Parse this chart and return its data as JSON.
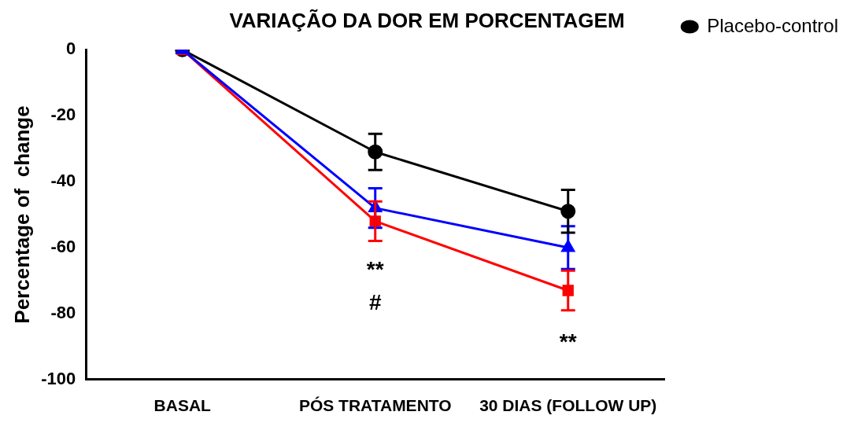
{
  "chart_data": {
    "type": "line",
    "title": "VARIAÇÃO DA DOR EM PORCENTAGEM",
    "ylabel": "Percentage of  change",
    "categories": [
      "BASAL",
      "PÓS TRATAMENTO",
      "30 DIAS (FOLLOW UP)"
    ],
    "series": [
      {
        "color": "#0000ff",
        "marker": "triangle",
        "values": [
          0,
          -48,
          -60
        ],
        "errors": [
          null,
          6,
          6.5
        ]
      },
      {
        "color": "#ff0000",
        "marker": "square",
        "values": [
          0,
          -52,
          -73
        ],
        "errors": [
          null,
          6,
          6
        ]
      },
      {
        "name": "Placebo-control",
        "color": "#000000",
        "marker": "circle",
        "values": [
          0,
          -31,
          -49
        ],
        "errors": [
          null,
          5.5,
          6.5
        ]
      }
    ],
    "ylim": [
      -100,
      0
    ],
    "yticks": [
      -100,
      -80,
      -60,
      -40,
      -20,
      0
    ],
    "grid": false,
    "legend": "top right",
    "annotations": [
      "**",
      "#",
      "**"
    ]
  }
}
